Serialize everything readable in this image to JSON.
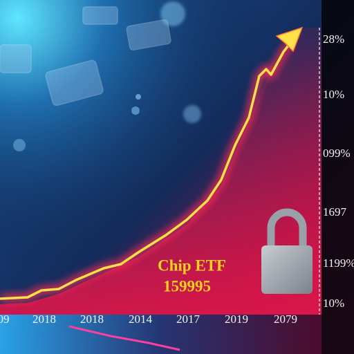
{
  "annotation": {
    "title": "Chip ETF",
    "value": "159995"
  },
  "x_labels": [
    "09",
    "2018",
    "2018",
    "2014",
    "2017",
    "2019",
    "2079"
  ],
  "y_labels": [
    "28%",
    "10%",
    "099%",
    "1697",
    "1199%",
    "10%"
  ]
}
